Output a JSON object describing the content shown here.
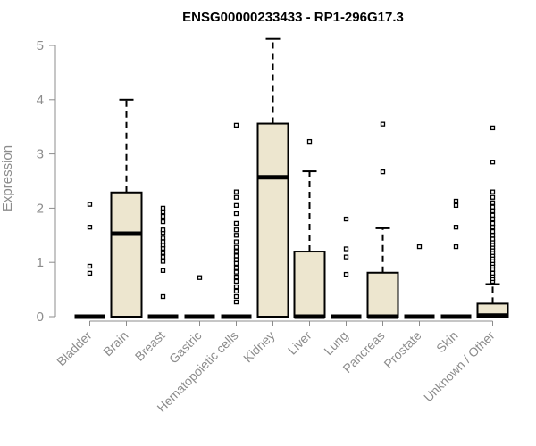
{
  "chart_data": {
    "type": "box",
    "title": "ENSG00000233433 - RP1-296G17.3",
    "xlabel": "",
    "ylabel": "Expression",
    "ylim": [
      0,
      5
    ],
    "yticks": [
      0,
      1,
      2,
      3,
      4,
      5
    ],
    "grid": false,
    "colors": {
      "box_fill": "#ede6cf",
      "stroke": "#000000",
      "axis": "#8c8c8c",
      "text": "#8c8c8c"
    },
    "categories": [
      "Bladder",
      "Brain",
      "Breast",
      "Gastric",
      "Hematopoietic cells",
      "Kidney",
      "Liver",
      "Lung",
      "Pancreas",
      "Prostate",
      "Skin",
      "Unknown / Other"
    ],
    "boxes": [
      {
        "category": "Bladder",
        "q1": 0,
        "median": 0,
        "q3": 0,
        "whisker_low": 0,
        "whisker_high": 0,
        "outliers": [
          0.8,
          0.93,
          1.65,
          2.07
        ]
      },
      {
        "category": "Brain",
        "q1": 0,
        "median": 1.53,
        "q3": 2.29,
        "whisker_low": 0,
        "whisker_high": 4.0,
        "outliers": []
      },
      {
        "category": "Breast",
        "q1": 0,
        "median": 0,
        "q3": 0,
        "whisker_low": 0,
        "whisker_high": 0,
        "outliers": [
          0.37,
          0.85,
          1.02,
          1.1,
          1.18,
          1.26,
          1.32,
          1.38,
          1.45,
          1.55,
          1.6,
          1.75,
          1.85,
          1.93,
          2.0
        ]
      },
      {
        "category": "Gastric",
        "q1": 0,
        "median": 0,
        "q3": 0,
        "whisker_low": 0,
        "whisker_high": 0,
        "outliers": [
          0.72
        ]
      },
      {
        "category": "Hematopoietic cells",
        "q1": 0,
        "median": 0,
        "q3": 0,
        "whisker_low": 0,
        "whisker_high": 0,
        "outliers": [
          0.27,
          0.37,
          0.47,
          0.55,
          0.65,
          0.73,
          0.82,
          0.9,
          0.98,
          1.05,
          1.12,
          1.2,
          1.28,
          1.38,
          1.5,
          1.6,
          1.72,
          1.9,
          2.05,
          2.2,
          2.3,
          3.53
        ]
      },
      {
        "category": "Kidney",
        "q1": 0,
        "median": 2.57,
        "q3": 3.56,
        "whisker_low": 0,
        "whisker_high": 5.12,
        "outliers": []
      },
      {
        "category": "Liver",
        "q1": 0,
        "median": 0,
        "q3": 1.2,
        "whisker_low": 0,
        "whisker_high": 2.68,
        "outliers": [
          3.23
        ]
      },
      {
        "category": "Lung",
        "q1": 0,
        "median": 0,
        "q3": 0,
        "whisker_low": 0,
        "whisker_high": 0,
        "outliers": [
          0.78,
          1.1,
          1.25,
          1.8
        ]
      },
      {
        "category": "Pancreas",
        "q1": 0,
        "median": 0,
        "q3": 0.81,
        "whisker_low": 0,
        "whisker_high": 1.63,
        "outliers": [
          2.67,
          3.55
        ]
      },
      {
        "category": "Prostate",
        "q1": 0,
        "median": 0,
        "q3": 0,
        "whisker_low": 0,
        "whisker_high": 0,
        "outliers": [
          1.29
        ]
      },
      {
        "category": "Skin",
        "q1": 0,
        "median": 0,
        "q3": 0,
        "whisker_low": 0,
        "whisker_high": 0,
        "outliers": [
          1.29,
          1.65,
          2.05,
          2.13
        ]
      },
      {
        "category": "Unknown / Other",
        "q1": 0,
        "median": 0.02,
        "q3": 0.24,
        "whisker_low": 0,
        "whisker_high": 0.6,
        "outliers": [
          0.65,
          0.7,
          0.75,
          0.8,
          0.87,
          0.93,
          0.98,
          1.03,
          1.08,
          1.13,
          1.18,
          1.23,
          1.28,
          1.33,
          1.38,
          1.43,
          1.5,
          1.57,
          1.65,
          1.72,
          1.8,
          1.87,
          1.95,
          2.02,
          2.1,
          2.2,
          2.3,
          2.85,
          3.48
        ]
      }
    ]
  }
}
